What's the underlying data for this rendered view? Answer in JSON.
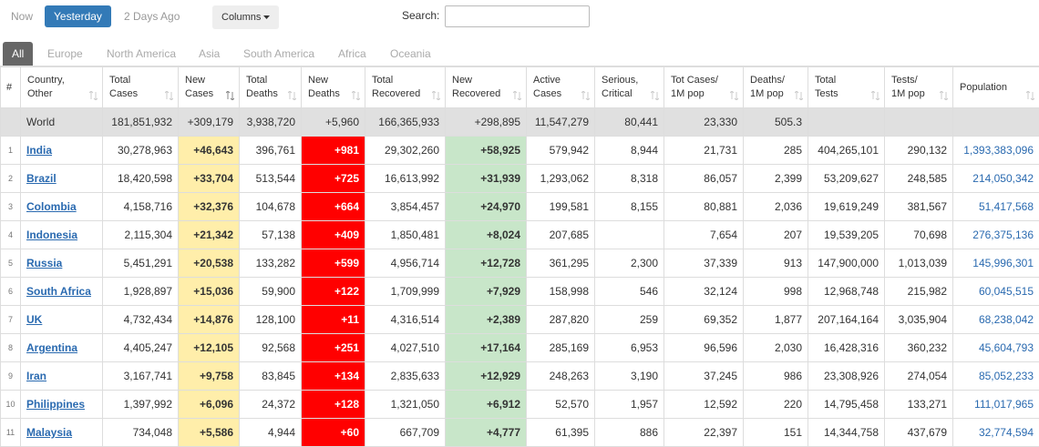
{
  "tabs": [
    "Now",
    "Yesterday",
    "2 Days Ago"
  ],
  "columns_button": "Columns",
  "search_label": "Search:",
  "regions": [
    "All",
    "Europe",
    "North America",
    "Asia",
    "South America",
    "Africa",
    "Oceania"
  ],
  "table": {
    "headers": [
      [
        "#"
      ],
      [
        "Country,",
        "Other"
      ],
      [
        "Total",
        "Cases"
      ],
      [
        "New",
        "Cases"
      ],
      [
        "Total",
        "Deaths"
      ],
      [
        "New",
        "Deaths"
      ],
      [
        "Total",
        "Recovered"
      ],
      [
        "New",
        "Recovered"
      ],
      [
        "Active",
        "Cases"
      ],
      [
        "Serious,",
        "Critical"
      ],
      [
        "Tot Cases/",
        "1M pop"
      ],
      [
        "Deaths/",
        "1M pop"
      ],
      [
        "Total",
        "Tests"
      ],
      [
        "Tests/",
        "1M pop"
      ],
      [
        "Population"
      ]
    ],
    "world": [
      null,
      "World",
      "181,851,932",
      "+309,179",
      "3,938,720",
      "+5,960",
      "166,365,933",
      "+298,895",
      "11,547,279",
      "80,441",
      "23,330",
      "505.3",
      null,
      null,
      null
    ],
    "rows": [
      [
        "1",
        "India",
        "30,278,963",
        "+46,643",
        "396,761",
        "+981",
        "29,302,260",
        "+58,925",
        "579,942",
        "8,944",
        "21,731",
        "285",
        "404,265,101",
        "290,132",
        "1,393,383,096"
      ],
      [
        "2",
        "Brazil",
        "18,420,598",
        "+33,704",
        "513,544",
        "+725",
        "16,613,992",
        "+31,939",
        "1,293,062",
        "8,318",
        "86,057",
        "2,399",
        "53,209,627",
        "248,585",
        "214,050,342"
      ],
      [
        "3",
        "Colombia",
        "4,158,716",
        "+32,376",
        "104,678",
        "+664",
        "3,854,457",
        "+24,970",
        "199,581",
        "8,155",
        "80,881",
        "2,036",
        "19,619,249",
        "381,567",
        "51,417,568"
      ],
      [
        "4",
        "Indonesia",
        "2,115,304",
        "+21,342",
        "57,138",
        "+409",
        "1,850,481",
        "+8,024",
        "207,685",
        null,
        "7,654",
        "207",
        "19,539,205",
        "70,698",
        "276,375,136"
      ],
      [
        "5",
        "Russia",
        "5,451,291",
        "+20,538",
        "133,282",
        "+599",
        "4,956,714",
        "+12,728",
        "361,295",
        "2,300",
        "37,339",
        "913",
        "147,900,000",
        "1,013,039",
        "145,996,301"
      ],
      [
        "6",
        "South Africa",
        "1,928,897",
        "+15,036",
        "59,900",
        "+122",
        "1,709,999",
        "+7,929",
        "158,998",
        "546",
        "32,124",
        "998",
        "12,968,748",
        "215,982",
        "60,045,515"
      ],
      [
        "7",
        "UK",
        "4,732,434",
        "+14,876",
        "128,100",
        "+11",
        "4,316,514",
        "+2,389",
        "287,820",
        "259",
        "69,352",
        "1,877",
        "207,164,164",
        "3,035,904",
        "68,238,042"
      ],
      [
        "8",
        "Argentina",
        "4,405,247",
        "+12,105",
        "92,568",
        "+251",
        "4,027,510",
        "+17,164",
        "285,169",
        "6,953",
        "96,596",
        "2,030",
        "16,428,316",
        "360,232",
        "45,604,793"
      ],
      [
        "9",
        "Iran",
        "3,167,741",
        "+9,758",
        "83,845",
        "+134",
        "2,835,633",
        "+12,929",
        "248,263",
        "3,190",
        "37,245",
        "986",
        "23,308,926",
        "274,054",
        "85,052,233"
      ],
      [
        "10",
        "Philippines",
        "1,397,992",
        "+6,096",
        "24,372",
        "+128",
        "1,321,050",
        "+6,912",
        "52,570",
        "1,957",
        "12,592",
        "220",
        "14,795,458",
        "133,271",
        "111,017,965"
      ],
      [
        "11",
        "Malaysia",
        "734,048",
        "+5,586",
        "4,944",
        "+60",
        "667,709",
        "+4,777",
        "61,395",
        "886",
        "22,397",
        "151",
        "14,344,758",
        "437,679",
        "32,774,594"
      ]
    ]
  }
}
